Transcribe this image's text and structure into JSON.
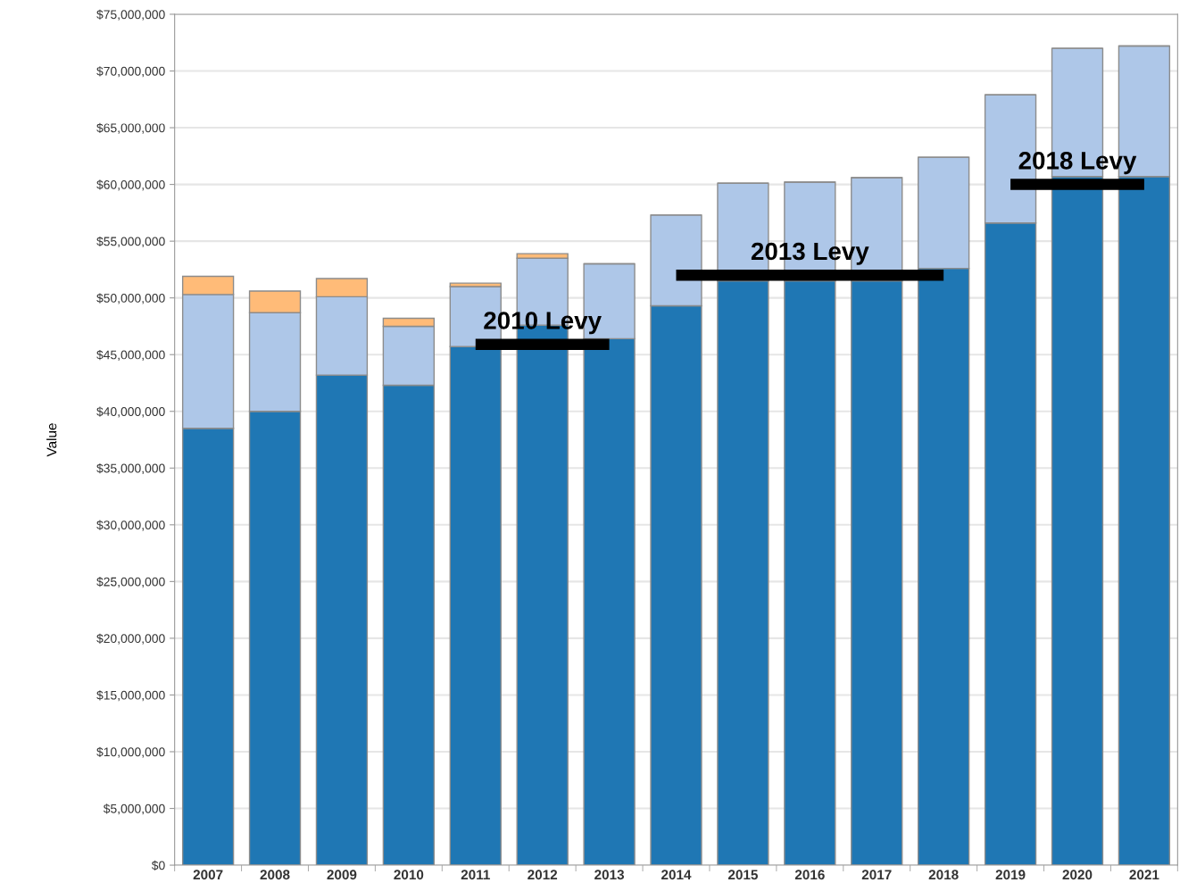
{
  "chart_data": {
    "type": "bar",
    "stacked": true,
    "ylabel": "Value",
    "categories": [
      "2007",
      "2008",
      "2009",
      "2010",
      "2011",
      "2012",
      "2013",
      "2014",
      "2015",
      "2016",
      "2017",
      "2018",
      "2019",
      "2020",
      "2021"
    ],
    "series": [
      {
        "color": "#1f77b4",
        "values": [
          38500000,
          40000000,
          43200000,
          42300000,
          45700000,
          47600000,
          46400000,
          49300000,
          51500000,
          51500000,
          51500000,
          52600000,
          56600000,
          60700000,
          60700000
        ]
      },
      {
        "color": "#aec7e8",
        "values": [
          11800000,
          8700000,
          6900000,
          5200000,
          5300000,
          5900000,
          6600000,
          8000000,
          8600000,
          8700000,
          9100000,
          9800000,
          11300000,
          11300000,
          11500000
        ]
      },
      {
        "color": "#ffbb78",
        "values": [
          1600000,
          1900000,
          1600000,
          700000,
          300000,
          400000,
          null,
          null,
          null,
          null,
          null,
          null,
          null,
          null,
          null
        ]
      },
      {
        "type": "step",
        "name": "2010 Levy",
        "color": "#000000",
        "values": [
          null,
          null,
          null,
          null,
          45900000,
          45900000,
          45900000,
          null,
          null,
          null,
          null,
          null,
          null,
          null,
          null
        ]
      },
      {
        "type": "step",
        "name": "2013 Levy",
        "color": "#000000",
        "values": [
          null,
          null,
          null,
          null,
          null,
          null,
          null,
          52000000,
          52000000,
          52000000,
          52000000,
          52000000,
          null,
          null,
          null
        ]
      },
      {
        "type": "step",
        "name": "2018 Levy",
        "color": "#000000",
        "values": [
          null,
          null,
          null,
          null,
          null,
          null,
          null,
          null,
          null,
          null,
          null,
          null,
          60000000,
          60000000,
          60000000
        ]
      }
    ],
    "ylim": [
      0,
      75000000
    ],
    "yticks": [
      {
        "value": 0,
        "label": "$0"
      },
      {
        "value": 5000000,
        "label": "$5,000,000"
      },
      {
        "value": 10000000,
        "label": "$10,000,000"
      },
      {
        "value": 15000000,
        "label": "$15,000,000"
      },
      {
        "value": 20000000,
        "label": "$20,000,000"
      },
      {
        "value": 25000000,
        "label": "$25,000,000"
      },
      {
        "value": 30000000,
        "label": "$30,000,000"
      },
      {
        "value": 35000000,
        "label": "$35,000,000"
      },
      {
        "value": 40000000,
        "label": "$40,000,000"
      },
      {
        "value": 45000000,
        "label": "$45,000,000"
      },
      {
        "value": 50000000,
        "label": "$50,000,000"
      },
      {
        "value": 55000000,
        "label": "$55,000,000"
      },
      {
        "value": 60000000,
        "label": "$60,000,000"
      },
      {
        "value": 65000000,
        "label": "$65,000,000"
      },
      {
        "value": 70000000,
        "label": "$70,000,000"
      },
      {
        "value": 75000000,
        "label": "$75,000,000"
      }
    ],
    "grid": "y",
    "legend": false
  }
}
